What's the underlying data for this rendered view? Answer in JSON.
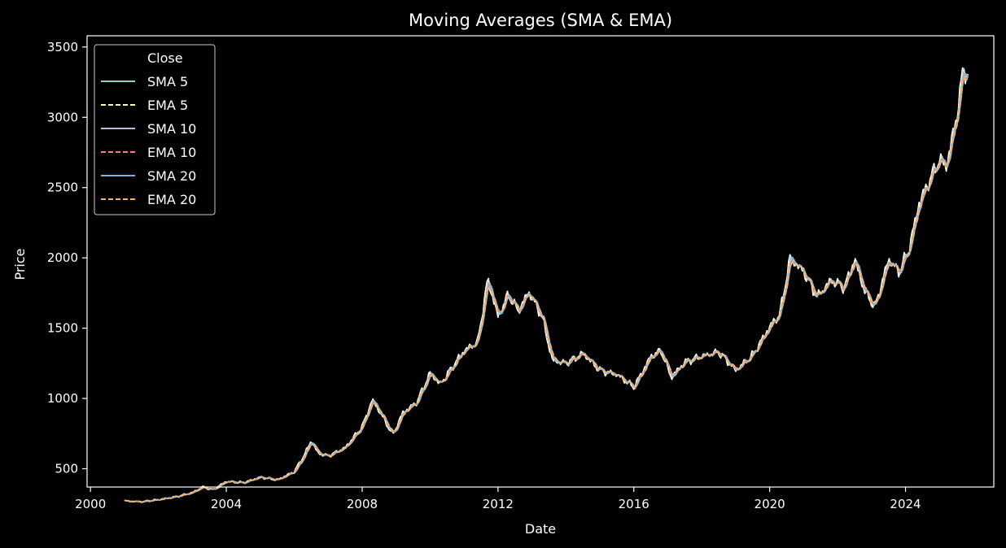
{
  "chart_data": {
    "type": "line",
    "title": "Moving Averages (SMA & EMA)",
    "xlabel": "Date",
    "ylabel": "Price",
    "xlim": [
      1999.9,
      2026.6
    ],
    "ylim": [
      370,
      3580
    ],
    "x_ticks": [
      "2000",
      "2004",
      "2008",
      "2012",
      "2016",
      "2020",
      "2024"
    ],
    "y_ticks": [
      "500",
      "1000",
      "1500",
      "2000",
      "2500",
      "3000",
      "3500"
    ],
    "grid": false,
    "legend_position": "upper-left",
    "legend_entries": [
      "Close",
      "SMA 5",
      "EMA 5",
      "SMA 10",
      "EMA 10",
      "SMA 20",
      "EMA 20"
    ],
    "series": [
      {
        "name": "Close",
        "color": "#ffffff",
        "style": "solid"
      },
      {
        "name": "SMA 5",
        "color": "#8dd3c7",
        "style": "solid"
      },
      {
        "name": "EMA 5",
        "color": "#feffb3",
        "style": "dashed"
      },
      {
        "name": "SMA 10",
        "color": "#bfbbd9",
        "style": "solid"
      },
      {
        "name": "EMA 10",
        "color": "#fa8174",
        "style": "dashed"
      },
      {
        "name": "SMA 20",
        "color": "#81b1d2",
        "style": "solid"
      },
      {
        "name": "EMA 20",
        "color": "#fdb462",
        "style": "dashed"
      }
    ],
    "approx_close_path": [
      [
        2001.0,
        270
      ],
      [
        2001.5,
        265
      ],
      [
        2002.0,
        280
      ],
      [
        2002.5,
        300
      ],
      [
        2003.0,
        330
      ],
      [
        2003.3,
        370
      ],
      [
        2003.6,
        350
      ],
      [
        2004.0,
        410
      ],
      [
        2004.5,
        400
      ],
      [
        2005.0,
        440
      ],
      [
        2005.5,
        420
      ],
      [
        2006.0,
        480
      ],
      [
        2006.3,
        600
      ],
      [
        2006.5,
        700
      ],
      [
        2006.7,
        610
      ],
      [
        2007.0,
        590
      ],
      [
        2007.5,
        650
      ],
      [
        2008.0,
        800
      ],
      [
        2008.3,
        990
      ],
      [
        2008.6,
        870
      ],
      [
        2008.9,
        740
      ],
      [
        2009.2,
        900
      ],
      [
        2009.6,
        970
      ],
      [
        2010.0,
        1180
      ],
      [
        2010.3,
        1100
      ],
      [
        2010.7,
        1240
      ],
      [
        2011.0,
        1340
      ],
      [
        2011.4,
        1400
      ],
      [
        2011.7,
        1850
      ],
      [
        2012.0,
        1580
      ],
      [
        2012.3,
        1740
      ],
      [
        2012.6,
        1620
      ],
      [
        2012.9,
        1760
      ],
      [
        2013.3,
        1580
      ],
      [
        2013.6,
        1270
      ],
      [
        2014.0,
        1250
      ],
      [
        2014.5,
        1320
      ],
      [
        2015.0,
        1200
      ],
      [
        2015.5,
        1170
      ],
      [
        2016.0,
        1080
      ],
      [
        2016.5,
        1300
      ],
      [
        2016.8,
        1340
      ],
      [
        2017.1,
        1150
      ],
      [
        2017.5,
        1260
      ],
      [
        2018.0,
        1300
      ],
      [
        2018.5,
        1330
      ],
      [
        2019.0,
        1200
      ],
      [
        2019.5,
        1310
      ],
      [
        2020.0,
        1510
      ],
      [
        2020.3,
        1600
      ],
      [
        2020.6,
        2000
      ],
      [
        2021.0,
        1900
      ],
      [
        2021.4,
        1720
      ],
      [
        2021.8,
        1840
      ],
      [
        2022.2,
        1790
      ],
      [
        2022.5,
        1990
      ],
      [
        2022.8,
        1760
      ],
      [
        2023.1,
        1650
      ],
      [
        2023.5,
        1990
      ],
      [
        2023.8,
        1900
      ],
      [
        2024.1,
        2060
      ],
      [
        2024.4,
        2390
      ],
      [
        2024.8,
        2600
      ],
      [
        2025.0,
        2700
      ],
      [
        2025.2,
        2650
      ],
      [
        2025.5,
        3000
      ],
      [
        2025.7,
        3340
      ],
      [
        2025.85,
        3300
      ]
    ]
  }
}
